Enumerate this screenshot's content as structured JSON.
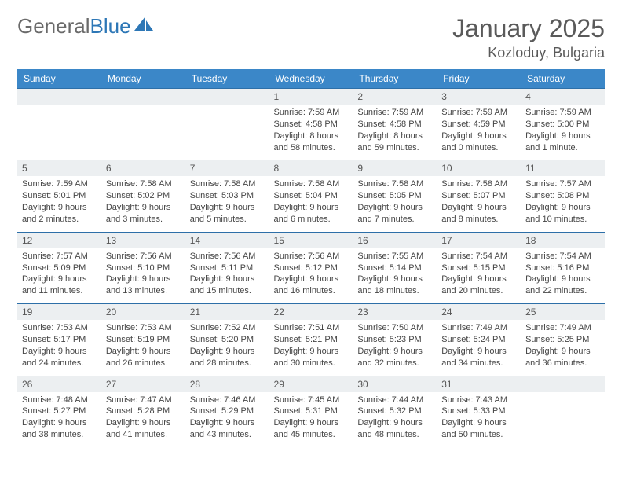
{
  "logo": {
    "text1": "General",
    "text2": "Blue"
  },
  "title": "January 2025",
  "location": "Kozloduy, Bulgaria",
  "colors": {
    "header_bg": "#3b87c8",
    "header_fg": "#ffffff",
    "row_border": "#2d6fa8",
    "daynum_bg": "#eceff1",
    "page_bg": "#ffffff",
    "text": "#3a3a3a",
    "logo_gray": "#6a6a6a",
    "logo_blue": "#2d77b6"
  },
  "fonts": {
    "title_pt": 32,
    "location_pt": 18,
    "header_pt": 12,
    "daynum_pt": 12,
    "body_pt": 11
  },
  "day_headers": [
    "Sunday",
    "Monday",
    "Tuesday",
    "Wednesday",
    "Thursday",
    "Friday",
    "Saturday"
  ],
  "weeks": [
    [
      null,
      null,
      null,
      {
        "n": "1",
        "sunrise": "7:59 AM",
        "sunset": "4:58 PM",
        "daylight": "8 hours and 58 minutes."
      },
      {
        "n": "2",
        "sunrise": "7:59 AM",
        "sunset": "4:58 PM",
        "daylight": "8 hours and 59 minutes."
      },
      {
        "n": "3",
        "sunrise": "7:59 AM",
        "sunset": "4:59 PM",
        "daylight": "9 hours and 0 minutes."
      },
      {
        "n": "4",
        "sunrise": "7:59 AM",
        "sunset": "5:00 PM",
        "daylight": "9 hours and 1 minute."
      }
    ],
    [
      {
        "n": "5",
        "sunrise": "7:59 AM",
        "sunset": "5:01 PM",
        "daylight": "9 hours and 2 minutes."
      },
      {
        "n": "6",
        "sunrise": "7:58 AM",
        "sunset": "5:02 PM",
        "daylight": "9 hours and 3 minutes."
      },
      {
        "n": "7",
        "sunrise": "7:58 AM",
        "sunset": "5:03 PM",
        "daylight": "9 hours and 5 minutes."
      },
      {
        "n": "8",
        "sunrise": "7:58 AM",
        "sunset": "5:04 PM",
        "daylight": "9 hours and 6 minutes."
      },
      {
        "n": "9",
        "sunrise": "7:58 AM",
        "sunset": "5:05 PM",
        "daylight": "9 hours and 7 minutes."
      },
      {
        "n": "10",
        "sunrise": "7:58 AM",
        "sunset": "5:07 PM",
        "daylight": "9 hours and 8 minutes."
      },
      {
        "n": "11",
        "sunrise": "7:57 AM",
        "sunset": "5:08 PM",
        "daylight": "9 hours and 10 minutes."
      }
    ],
    [
      {
        "n": "12",
        "sunrise": "7:57 AM",
        "sunset": "5:09 PM",
        "daylight": "9 hours and 11 minutes."
      },
      {
        "n": "13",
        "sunrise": "7:56 AM",
        "sunset": "5:10 PM",
        "daylight": "9 hours and 13 minutes."
      },
      {
        "n": "14",
        "sunrise": "7:56 AM",
        "sunset": "5:11 PM",
        "daylight": "9 hours and 15 minutes."
      },
      {
        "n": "15",
        "sunrise": "7:56 AM",
        "sunset": "5:12 PM",
        "daylight": "9 hours and 16 minutes."
      },
      {
        "n": "16",
        "sunrise": "7:55 AM",
        "sunset": "5:14 PM",
        "daylight": "9 hours and 18 minutes."
      },
      {
        "n": "17",
        "sunrise": "7:54 AM",
        "sunset": "5:15 PM",
        "daylight": "9 hours and 20 minutes."
      },
      {
        "n": "18",
        "sunrise": "7:54 AM",
        "sunset": "5:16 PM",
        "daylight": "9 hours and 22 minutes."
      }
    ],
    [
      {
        "n": "19",
        "sunrise": "7:53 AM",
        "sunset": "5:17 PM",
        "daylight": "9 hours and 24 minutes."
      },
      {
        "n": "20",
        "sunrise": "7:53 AM",
        "sunset": "5:19 PM",
        "daylight": "9 hours and 26 minutes."
      },
      {
        "n": "21",
        "sunrise": "7:52 AM",
        "sunset": "5:20 PM",
        "daylight": "9 hours and 28 minutes."
      },
      {
        "n": "22",
        "sunrise": "7:51 AM",
        "sunset": "5:21 PM",
        "daylight": "9 hours and 30 minutes."
      },
      {
        "n": "23",
        "sunrise": "7:50 AM",
        "sunset": "5:23 PM",
        "daylight": "9 hours and 32 minutes."
      },
      {
        "n": "24",
        "sunrise": "7:49 AM",
        "sunset": "5:24 PM",
        "daylight": "9 hours and 34 minutes."
      },
      {
        "n": "25",
        "sunrise": "7:49 AM",
        "sunset": "5:25 PM",
        "daylight": "9 hours and 36 minutes."
      }
    ],
    [
      {
        "n": "26",
        "sunrise": "7:48 AM",
        "sunset": "5:27 PM",
        "daylight": "9 hours and 38 minutes."
      },
      {
        "n": "27",
        "sunrise": "7:47 AM",
        "sunset": "5:28 PM",
        "daylight": "9 hours and 41 minutes."
      },
      {
        "n": "28",
        "sunrise": "7:46 AM",
        "sunset": "5:29 PM",
        "daylight": "9 hours and 43 minutes."
      },
      {
        "n": "29",
        "sunrise": "7:45 AM",
        "sunset": "5:31 PM",
        "daylight": "9 hours and 45 minutes."
      },
      {
        "n": "30",
        "sunrise": "7:44 AM",
        "sunset": "5:32 PM",
        "daylight": "9 hours and 48 minutes."
      },
      {
        "n": "31",
        "sunrise": "7:43 AM",
        "sunset": "5:33 PM",
        "daylight": "9 hours and 50 minutes."
      },
      null
    ]
  ],
  "labels": {
    "sunrise": "Sunrise:",
    "sunset": "Sunset:",
    "daylight": "Daylight:"
  }
}
